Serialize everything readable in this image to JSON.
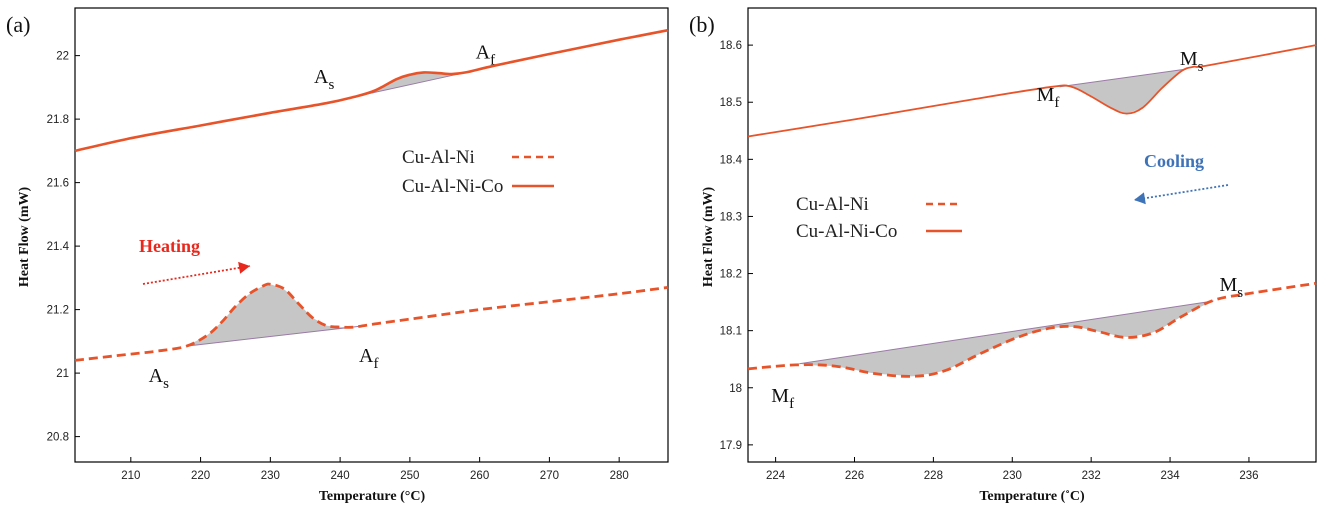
{
  "chart_data": [
    {
      "panel_label": "(a)",
      "type": "line",
      "xlabel": "Temperature (°C)",
      "ylabel": "Heat Flow (mW)",
      "xlim": [
        202,
        287
      ],
      "ylim": [
        20.72,
        22.15
      ],
      "x_ticks": [
        "210",
        "220",
        "230",
        "240",
        "250",
        "260",
        "270",
        "280"
      ],
      "y_ticks": [
        "20.8",
        "21",
        "21.2",
        "21.4",
        "21.6",
        "21.8",
        "22"
      ],
      "legend": {
        "placement": "center-right",
        "entries": [
          "Cu-Al-Ni",
          "Cu-Al-Ni-Co"
        ]
      },
      "direction_label": "Heating",
      "series": [
        {
          "name": "Cu-Al-Ni-Co",
          "style": "solid",
          "color": "#e8542a",
          "x": [
            202,
            210,
            220,
            230,
            238,
            242,
            245,
            248,
            250,
            252,
            254,
            256,
            258,
            262,
            270,
            280,
            287
          ],
          "y": [
            21.7,
            21.74,
            21.78,
            21.82,
            21.85,
            21.87,
            21.89,
            21.925,
            21.94,
            21.947,
            21.945,
            21.942,
            21.947,
            21.968,
            22.005,
            22.05,
            22.08
          ],
          "peak_baseline": [
            [
              242,
              21.87
            ],
            [
              258,
              21.947
            ]
          ],
          "annotations": [
            {
              "text": "A",
              "sub": "s"
            },
            {
              "text": "A",
              "sub": "f"
            }
          ]
        },
        {
          "name": "Cu-Al-Ni",
          "style": "dashed",
          "color": "#e8542a",
          "x": [
            202,
            210,
            214,
            218,
            221,
            223,
            225,
            227,
            229,
            230,
            232,
            234,
            236,
            238,
            240,
            242,
            245,
            250,
            260,
            270,
            280,
            287
          ],
          "y": [
            21.04,
            21.06,
            21.07,
            21.085,
            21.12,
            21.16,
            21.21,
            21.25,
            21.275,
            21.28,
            21.265,
            21.22,
            21.175,
            21.15,
            21.145,
            21.145,
            21.155,
            21.17,
            21.2,
            21.225,
            21.25,
            21.27
          ],
          "peak_baseline": [
            [
              218,
              21.085
            ],
            [
              243,
              21.148
            ]
          ],
          "annotations": [
            {
              "text": "A",
              "sub": "s"
            },
            {
              "text": "A",
              "sub": "f"
            }
          ]
        }
      ]
    },
    {
      "panel_label": "(b)",
      "type": "line",
      "xlabel": "Temperature (˚C)",
      "ylabel": "Heat Flow (mW)",
      "xlim": [
        223.3,
        237.7
      ],
      "ylim": [
        17.87,
        18.665
      ],
      "x_ticks": [
        "224",
        "226",
        "228",
        "230",
        "232",
        "234",
        "236"
      ],
      "y_ticks": [
        "17.9",
        "18",
        "18.1",
        "18.2",
        "18.3",
        "18.4",
        "18.5",
        "18.6"
      ],
      "legend": {
        "placement": "center-left",
        "entries": [
          "Cu-Al-Ni",
          "Cu-Al-Ni-Co"
        ]
      },
      "direction_label": "Cooling",
      "series": [
        {
          "name": "Cu-Al-Ni-Co",
          "style": "solid",
          "color": "#e8542a",
          "x": [
            223.3,
            226,
            229,
            231,
            231.5,
            232,
            232.5,
            232.9,
            233.3,
            233.8,
            234.3,
            234.6,
            235,
            237.7
          ],
          "y": [
            18.44,
            18.47,
            18.505,
            18.527,
            18.527,
            18.51,
            18.49,
            18.48,
            18.49,
            18.525,
            18.555,
            18.562,
            18.565,
            18.6
          ],
          "peak_baseline": [
            [
              231.2,
              18.527
            ],
            [
              234.4,
              18.558
            ]
          ],
          "annotations": [
            {
              "text": "M",
              "sub": "f"
            },
            {
              "text": "M",
              "sub": "s"
            }
          ]
        },
        {
          "name": "Cu-Al-Ni",
          "style": "dashed",
          "color": "#e8542a",
          "x": [
            223.3,
            224.5,
            225.5,
            226.5,
            227.5,
            228.3,
            229.2,
            230.2,
            231,
            231.6,
            232.2,
            232.9,
            233.6,
            234.3,
            235.1,
            236,
            237.7
          ],
          "y": [
            18.033,
            18.04,
            18.038,
            18.025,
            18.02,
            18.03,
            18.06,
            18.09,
            18.105,
            18.107,
            18.098,
            18.088,
            18.097,
            18.125,
            18.153,
            18.165,
            18.183
          ],
          "peak_baseline": [
            [
              224.6,
              18.042
            ],
            [
              235.1,
              18.152
            ]
          ],
          "annotations": [
            {
              "text": "M",
              "sub": "f"
            },
            {
              "text": "M",
              "sub": "s"
            }
          ]
        }
      ]
    }
  ]
}
